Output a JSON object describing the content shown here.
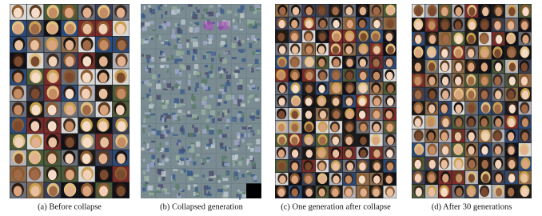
{
  "figure": {
    "captions": [
      "(a) Before collapse",
      "(b) Collapsed generation",
      "(c) One generation after collapse",
      "(d) After 30 generations"
    ]
  }
}
